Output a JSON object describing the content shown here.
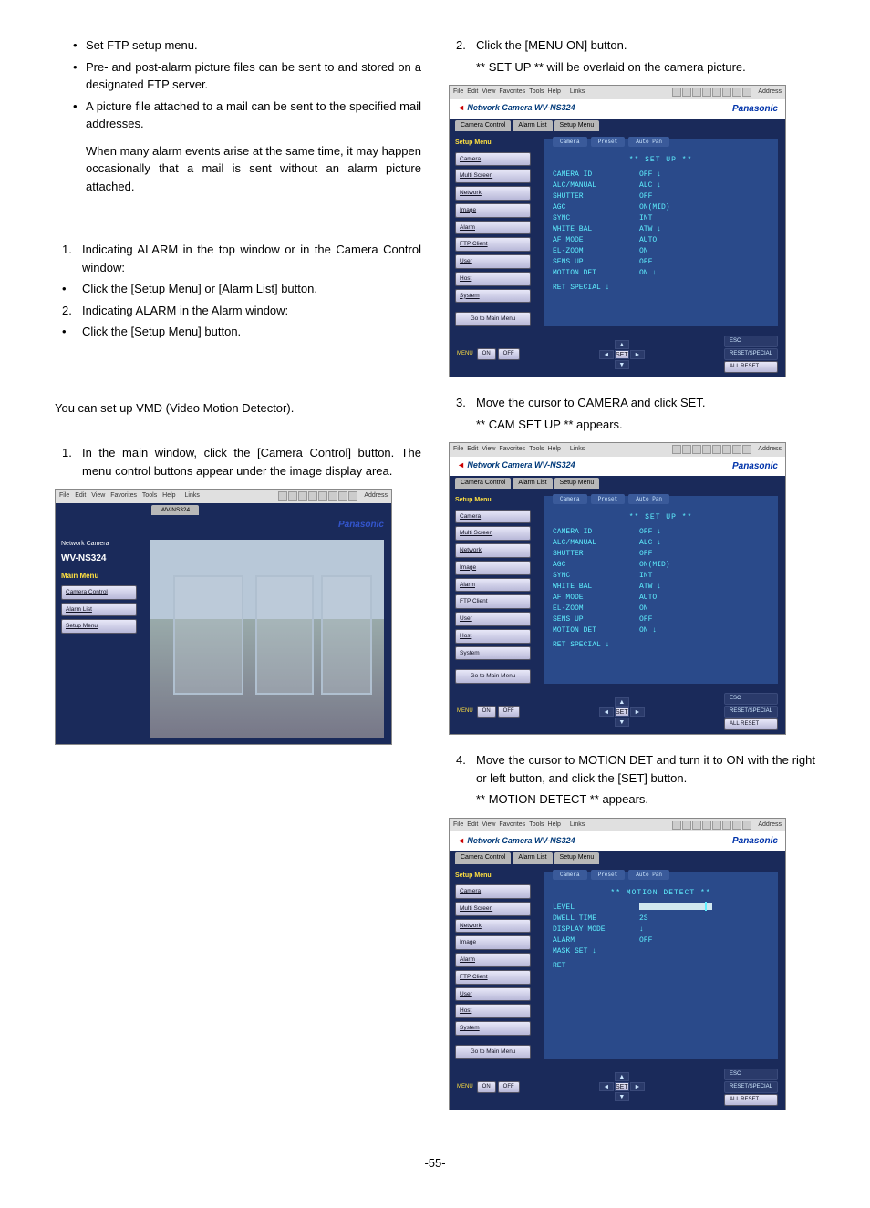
{
  "pageNumber": "-55-",
  "left": {
    "bullets": [
      "Set FTP setup menu.",
      "Pre- and post-alarm picture files can be sent to and stored on a designated FTP server.",
      "A picture file attached to a mail can be sent to the specified mail addresses."
    ],
    "note": "When many alarm events arise at the same time, it may happen occasionally that a mail is sent without an alarm picture attached.",
    "sectionA_title": "",
    "stepsA": [
      {
        "n": "1.",
        "t": "Indicating ALARM in the top window or in the Camera Control window:"
      },
      {
        "b": "•",
        "t": "Click the [Setup Menu] or [Alarm List] button."
      },
      {
        "n": "2.",
        "t": "Indicating ALARM in the Alarm window:"
      },
      {
        "b": "•",
        "t": "Click the [Setup Menu] button."
      }
    ],
    "vmd_intro": "You can set up VMD (Video Motion Detector).",
    "vmd_step1": {
      "n": "1.",
      "t": "In the main window, click the [Camera Control] button. The menu control buttons appear under the image display area."
    }
  },
  "right": {
    "step2": {
      "n": "2.",
      "t": "Click the [MENU ON] button."
    },
    "step2_sub": "** SET UP ** will be overlaid on the camera picture.",
    "step3": {
      "n": "3.",
      "t": "Move the cursor to CAMERA and click SET."
    },
    "step3_sub": "** CAM SET UP ** appears.",
    "step4": {
      "n": "4.",
      "t": "Move the cursor to MOTION DET and turn it to ON with the right or left button, and click the [SET] button."
    },
    "step4_sub": "** MOTION DETECT ** appears."
  },
  "shot_common": {
    "menus": [
      "File",
      "Edit",
      "View",
      "Favorites",
      "Tools",
      "Help"
    ],
    "links_lbl": "Links",
    "address_lbl": "Address",
    "model": "WV-NS324",
    "brand_prefix": "Network Camera",
    "panasonic": "Panasonic",
    "tabs_top": [
      "Camera Control",
      "Alarm List",
      "Setup Menu"
    ],
    "view_tabs": [
      "Camera",
      "Preset",
      "Auto Pan"
    ],
    "sidebar_title": "Setup Menu",
    "sidebar_items": [
      "Camera",
      "Multi Screen",
      "Network",
      "Image",
      "Alarm",
      "FTP Client",
      "User",
      "Host",
      "System"
    ],
    "go_main": "Go to Main Menu",
    "ctrl": {
      "menu_lbl": "MENU",
      "on": "ON",
      "off": "OFF",
      "set": "SET",
      "esc": "ESC",
      "reset": "RESET/SPECIAL",
      "allreset": "ALL RESET"
    }
  },
  "shot_main": {
    "module_tab": "WV-NS324",
    "sidebar_heading1": "Network Camera",
    "sidebar_heading2": "WV-NS324",
    "main_menu_lbl": "Main Menu",
    "menu_items": [
      "Camera Control",
      "Alarm List",
      "Setup Menu"
    ]
  },
  "osd_setup": {
    "title": "** SET UP **",
    "rows": [
      [
        "CAMERA ID",
        "OFF ↓"
      ],
      [
        "ALC/MANUAL",
        "ALC ↓"
      ],
      [
        "SHUTTER",
        "OFF"
      ],
      [
        "AGC",
        "ON(MID)"
      ],
      [
        "SYNC",
        "INT"
      ],
      [
        "WHITE BAL",
        "ATW ↓"
      ],
      [
        "AF MODE",
        "AUTO"
      ],
      [
        "EL-ZOOM",
        "ON"
      ],
      [
        "SENS UP",
        "OFF"
      ],
      [
        "MOTION DET",
        "ON ↓"
      ]
    ],
    "ret": "RET   SPECIAL ↓"
  },
  "osd_motion": {
    "title": "** MOTION DETECT **",
    "rows": [
      [
        "LEVEL",
        "__BAR__"
      ],
      [
        "DWELL TIME",
        "2S"
      ],
      [
        "DISPLAY MODE",
        "↓"
      ],
      [
        "ALARM",
        "OFF"
      ],
      [
        "MASK SET ↓",
        ""
      ]
    ],
    "ret": "RET"
  }
}
